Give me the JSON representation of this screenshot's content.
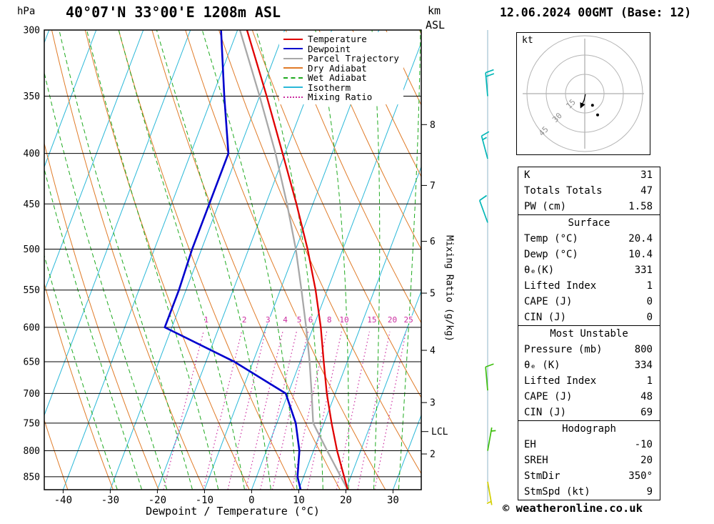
{
  "title": "40°07'N 33°00'E 1208m ASL",
  "datetime": "12.06.2024 00GMT (Base: 12)",
  "copyright": "© weatheronline.co.uk",
  "axes": {
    "pressure_unit": "hPa",
    "km_unit": "km",
    "asl_unit": "ASL",
    "x_label": "Dewpoint / Temperature (°C)",
    "mixing_ratio_label": "Mixing Ratio (g/kg)",
    "lcl_label": "LCL",
    "pressure_ticks": [
      300,
      350,
      400,
      450,
      500,
      550,
      600,
      650,
      700,
      750,
      800,
      850
    ],
    "temp_ticks_c": [
      -40,
      -30,
      -20,
      -10,
      0,
      10,
      20,
      30
    ],
    "km_ticks": [
      {
        "label": "8",
        "p": 374
      },
      {
        "label": "7",
        "p": 431
      },
      {
        "label": "6",
        "p": 491
      },
      {
        "label": "5",
        "p": 554
      },
      {
        "label": "4",
        "p": 633
      },
      {
        "label": "3",
        "p": 715
      },
      {
        "label": "2",
        "p": 806
      }
    ],
    "lcl_pressure": 765
  },
  "legend": [
    {
      "label": "Temperature",
      "color": "#e00000",
      "style": "solid"
    },
    {
      "label": "Dewpoint",
      "color": "#0000cd",
      "style": "solid"
    },
    {
      "label": "Parcel Trajectory",
      "color": "#a8a8a8",
      "style": "solid"
    },
    {
      "label": "Dry Adiabat",
      "color": "#e07b28",
      "style": "solid"
    },
    {
      "label": "Wet Adiabat",
      "color": "#1faa1f",
      "style": "dashed"
    },
    {
      "label": "Isotherm",
      "color": "#2ab8d8",
      "style": "solid"
    },
    {
      "label": "Mixing Ratio",
      "color": "#cb2da0",
      "style": "dotted"
    }
  ],
  "chart_data": {
    "type": "line",
    "title": "Skew-T log-P sounding 40°07'N 33°00'E 1208m ASL 12.06.2024 00GMT",
    "grid": "log-pressure, skewed temperature",
    "legend_position": "top-right",
    "pressure_hpa": [
      876,
      850,
      800,
      750,
      700,
      650,
      600,
      550,
      500,
      450,
      400,
      350,
      300
    ],
    "series": [
      {
        "name": "Temperature",
        "color": "#e00000",
        "values_c": [
          20.4,
          18.6,
          15.0,
          11.6,
          8.2,
          5.0,
          1.6,
          -2.5,
          -7.5,
          -13.5,
          -20.5,
          -28.5,
          -38.0
        ]
      },
      {
        "name": "Dewpoint",
        "color": "#0000cd",
        "values_c": [
          10.4,
          8.7,
          7.0,
          4.0,
          -0.5,
          -14.0,
          -31.5,
          -31.5,
          -32.0,
          -32.0,
          -32.0,
          -37.5,
          -43.5
        ]
      },
      {
        "name": "Parcel Trajectory",
        "color": "#a8a8a8",
        "values_c": [
          20.4,
          17.9,
          12.9,
          7.7,
          5.0,
          2.0,
          -1.5,
          -5.5,
          -10.0,
          -15.5,
          -22.0,
          -30.0,
          -39.5
        ]
      }
    ],
    "pressure_range_hpa": [
      300,
      876
    ],
    "temp_range_bottom_c": [
      -44,
      36
    ],
    "skew_dx_per_dy": 0.38,
    "isotherms_c": {
      "min": -110,
      "max": 40,
      "step": 10
    },
    "dry_adiabats_c": {
      "min": -30,
      "max": 120,
      "step": 10
    },
    "wet_adiabats_c": {
      "min": -20,
      "max": 40,
      "step": 5
    },
    "mixing_ratio_lines_gkg": [
      1,
      2,
      3,
      4,
      5,
      6,
      8,
      10,
      15,
      20,
      25
    ]
  },
  "wind_barbs": [
    {
      "p": 350,
      "kt": 20,
      "dir_deg": 355,
      "color": "#00b6b6"
    },
    {
      "p": 405,
      "kt": 15,
      "dir_deg": 345,
      "color": "#00b6b6"
    },
    {
      "p": 470,
      "kt": 10,
      "dir_deg": 340,
      "color": "#00b6b6"
    },
    {
      "p": 695,
      "kt": 10,
      "dir_deg": 355,
      "color": "#3fbf10"
    },
    {
      "p": 800,
      "kt": 5,
      "dir_deg": 10,
      "color": "#3fbf10"
    },
    {
      "p": 860,
      "kt": 5,
      "dir_deg": 170,
      "color": "#d4cf00"
    }
  ],
  "hodograph": {
    "unit_label": "kt",
    "rings_kt": [
      15,
      30,
      45
    ],
    "trace_uv_kt": [
      [
        0.5,
        -0.5
      ],
      [
        -0.5,
        -5.0
      ],
      [
        -3.0,
        -10.5
      ]
    ],
    "dots_uv_kt": [
      [
        6.0,
        -9.0
      ],
      [
        10.0,
        -16.5
      ]
    ]
  },
  "tables": {
    "sections": [
      {
        "header": null,
        "rows": [
          [
            "K",
            "31"
          ],
          [
            "Totals Totals",
            "47"
          ],
          [
            "PW (cm)",
            "1.58"
          ]
        ]
      },
      {
        "header": "Surface",
        "rows": [
          [
            "Temp (°C)",
            "20.4"
          ],
          [
            "Dewp (°C)",
            "10.4"
          ],
          [
            "θₑ(K)",
            "331"
          ],
          [
            "Lifted Index",
            "1"
          ],
          [
            "CAPE (J)",
            "0"
          ],
          [
            "CIN (J)",
            "0"
          ]
        ]
      },
      {
        "header": "Most Unstable",
        "rows": [
          [
            "Pressure (mb)",
            "800"
          ],
          [
            "θₑ (K)",
            "334"
          ],
          [
            "Lifted Index",
            "1"
          ],
          [
            "CAPE (J)",
            "48"
          ],
          [
            "CIN (J)",
            "69"
          ]
        ]
      },
      {
        "header": "Hodograph",
        "rows": [
          [
            "EH",
            "-10"
          ],
          [
            "SREH",
            "20"
          ],
          [
            "StmDir",
            "350°"
          ],
          [
            "StmSpd (kt)",
            "9"
          ]
        ]
      }
    ]
  },
  "colors": {
    "temperature": "#e00000",
    "dewpoint": "#0000cd",
    "parcel": "#a8a8a8",
    "dry_adiabat": "#e07b28",
    "wet_adiabat": "#1faa1f",
    "isotherm": "#2ab8d8",
    "mixing_ratio": "#cb2da0",
    "grid": "#000000",
    "barb_column": "#8fb6c8"
  }
}
